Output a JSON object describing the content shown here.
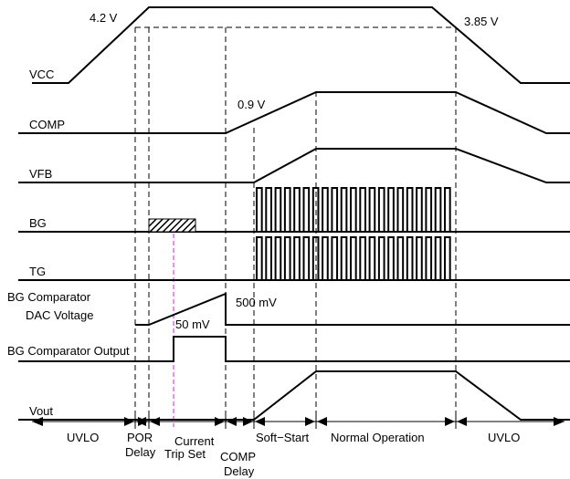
{
  "signals": {
    "vcc": "VCC",
    "comp": "COMP",
    "vfb": "VFB",
    "bg": "BG",
    "tg": "TG",
    "bg_dac_line1": "BG Comparator",
    "bg_dac_line2": "DAC Voltage",
    "bg_out": "BG Comparator Output",
    "vout": "Vout"
  },
  "annotations": {
    "vcc_rise": "4.2 V",
    "vcc_fall": "3.85 V",
    "comp_level": "0.9 V",
    "dac_peak": "500 mV",
    "dac_start": "50 mV"
  },
  "phases": {
    "uvlo_start": "UVLO",
    "por_1": "POR",
    "por_2": "Delay",
    "current_1": "Current",
    "current_2": "Trip Set",
    "comp_1": "COMP",
    "comp_2": "Delay",
    "soft_start": "Soft−Start",
    "normal": "Normal Operation",
    "uvlo_end": "UVLO"
  },
  "colors": {
    "trace": "#000000",
    "marker": "#e04ad6"
  }
}
